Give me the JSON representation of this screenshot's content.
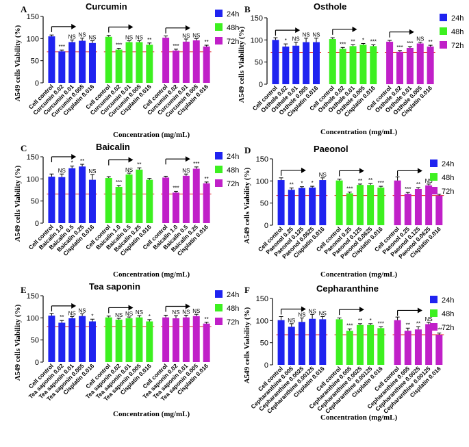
{
  "figure": {
    "xlabel": "Concentration (mg/mL)",
    "ylabel": "A549 cells Viability (%)",
    "legend": [
      "24h",
      "48h",
      "72h"
    ],
    "colors": {
      "24h": "#1f23f0",
      "48h": "#3df020",
      "72h": "#c020c8",
      "refline": "#e41a1c",
      "arrow": "#000000"
    }
  },
  "chart_data": [
    {
      "type": "bar",
      "panel": "A",
      "title": "Curcumin",
      "ylim": [
        0,
        150
      ],
      "yticks": [
        0,
        50,
        100,
        150
      ],
      "threshold": 70,
      "categories": [
        "Cell control",
        "Curcumin 0.02",
        "Curcumin 0.01",
        "Curcumin 0.005",
        "Cisplatin 0.016"
      ],
      "series": [
        {
          "name": "24h",
          "values": [
            105,
            71,
            92,
            95,
            90
          ],
          "errors": [
            3,
            3,
            5,
            6,
            5
          ],
          "labels": [
            "",
            "***",
            "NS",
            "NS",
            "NS"
          ]
        },
        {
          "name": "48h",
          "values": [
            104,
            75,
            92,
            92,
            86
          ],
          "errors": [
            3,
            3,
            3,
            3,
            4
          ],
          "labels": [
            "",
            "***",
            "NS",
            "NS",
            "**"
          ]
        },
        {
          "name": "72h",
          "values": [
            102,
            73,
            93,
            96,
            82
          ],
          "errors": [
            4,
            3,
            6,
            4,
            3
          ],
          "labels": [
            "",
            "***",
            "NS",
            "NS",
            "**"
          ]
        }
      ]
    },
    {
      "type": "bar",
      "panel": "B",
      "title": "Osthole",
      "ylim": [
        0,
        150
      ],
      "yticks": [
        0,
        50,
        100,
        150
      ],
      "threshold": 72,
      "categories": [
        "Cell control",
        "Osthole 0.02",
        "Osthole 0.01",
        "Osthole 0.005",
        "Cisplatin 0.016"
      ],
      "series": [
        {
          "name": "24h",
          "values": [
            100,
            85,
            87,
            95,
            95
          ],
          "errors": [
            5,
            6,
            8,
            9,
            9
          ],
          "labels": [
            "",
            "*",
            "NS",
            "NS",
            "NS"
          ]
        },
        {
          "name": "48h",
          "values": [
            102,
            80,
            86,
            89,
            86
          ],
          "errors": [
            3,
            3,
            3,
            3,
            3
          ],
          "labels": [
            "",
            "***",
            "**",
            "*",
            "***"
          ]
        },
        {
          "name": "72h",
          "values": [
            96,
            73,
            82,
            92,
            85
          ],
          "errors": [
            3,
            3,
            3,
            3,
            3
          ],
          "labels": [
            "",
            "***",
            "***",
            "NS",
            "**"
          ]
        }
      ]
    },
    {
      "type": "bar",
      "panel": "C",
      "title": "Baicalin",
      "ylim": [
        0,
        150
      ],
      "yticks": [
        0,
        50,
        100,
        150
      ],
      "threshold": 66,
      "categories": [
        "Cell control",
        "Baicalin 1.0",
        "Baicalin 0.5",
        "Baicalin 0.25",
        "Cisplatin 0.016"
      ],
      "series": [
        {
          "name": "24h",
          "values": [
            105,
            104,
            124,
            128,
            98
          ],
          "errors": [
            6,
            7,
            5,
            5,
            12
          ],
          "labels": [
            "",
            "NS",
            "*",
            "**",
            "NS"
          ]
        },
        {
          "name": "48h",
          "values": [
            102,
            82,
            110,
            121,
            98
          ],
          "errors": [
            3,
            3,
            3,
            4,
            3
          ],
          "labels": [
            "",
            "***",
            "NS",
            "**",
            ""
          ]
        },
        {
          "name": "72h",
          "values": [
            103,
            69,
            107,
            123,
            90
          ],
          "errors": [
            3,
            3,
            4,
            4,
            3
          ],
          "labels": [
            "",
            "***",
            "NS",
            "***",
            "**"
          ]
        }
      ]
    },
    {
      "type": "bar",
      "panel": "D",
      "title": "Paeonol",
      "ylim": [
        0,
        150
      ],
      "yticks": [
        0,
        50,
        100,
        150
      ],
      "threshold": 67,
      "categories": [
        "Cell control",
        "Paeonol 0.25",
        "Paeonol 0.125",
        "Paeonol 0.0625",
        "Cisplatin 0.016"
      ],
      "series": [
        {
          "name": "24h",
          "values": [
            102,
            80,
            84,
            85,
            102
          ],
          "errors": [
            5,
            4,
            3,
            3,
            5
          ],
          "labels": [
            "",
            "**",
            "*",
            "*",
            "NS"
          ]
        },
        {
          "name": "48h",
          "values": [
            101,
            72,
            91,
            91,
            85
          ],
          "errors": [
            3,
            3,
            2,
            3,
            3
          ],
          "labels": [
            "",
            "***",
            "**",
            "**",
            "***"
          ]
        },
        {
          "name": "72h",
          "values": [
            101,
            71,
            82,
            90,
            67
          ],
          "errors": [
            8,
            3,
            3,
            3,
            3
          ],
          "labels": [
            "",
            "***",
            "**",
            "NS",
            ""
          ]
        }
      ]
    },
    {
      "type": "bar",
      "panel": "E",
      "title": "Tea saponin",
      "ylim": [
        0,
        150
      ],
      "yticks": [
        0,
        50,
        100,
        150
      ],
      "threshold": 80,
      "categories": [
        "Cell control",
        "Tea saponin 0.02",
        "Tea saponin 0.01",
        "Tea saponin 0.005",
        "Cisplatin 0.016"
      ],
      "series": [
        {
          "name": "24h",
          "values": [
            105,
            89,
            99,
            104,
            92
          ],
          "errors": [
            5,
            5,
            4,
            5,
            5
          ],
          "labels": [
            "",
            "**",
            "NS",
            "NS",
            "*"
          ]
        },
        {
          "name": "48h",
          "values": [
            101,
            96,
            99,
            101,
            92
          ],
          "errors": [
            3,
            3,
            3,
            4,
            4
          ],
          "labels": [
            "",
            "NS",
            "NS",
            "NS",
            "*"
          ]
        },
        {
          "name": "72h",
          "values": [
            101,
            99,
            101,
            104,
            87
          ],
          "errors": [
            5,
            6,
            5,
            4,
            3
          ],
          "labels": [
            "",
            "NS",
            "NS",
            "NS",
            "**"
          ]
        }
      ]
    },
    {
      "type": "bar",
      "panel": "F",
      "title": "Cepharanthine",
      "ylim": [
        0,
        150
      ],
      "yticks": [
        0,
        50,
        100,
        150
      ],
      "threshold": 68,
      "categories": [
        "Cell control",
        "Cepharanthine 0.005",
        "Cepharanthine 0.0025",
        "Cepharanthine 0.00125",
        "Cisplatin 0.016"
      ],
      "series": [
        {
          "name": "24h",
          "values": [
            101,
            86,
            97,
            104,
            103
          ],
          "errors": [
            8,
            7,
            9,
            10,
            6
          ],
          "labels": [
            "",
            "NS",
            "NS",
            "NS",
            "NS"
          ]
        },
        {
          "name": "48h",
          "values": [
            103,
            77,
            90,
            90,
            83
          ],
          "errors": [
            3,
            4,
            3,
            3,
            3
          ],
          "labels": [
            "",
            "***",
            "**",
            "*",
            "***"
          ]
        },
        {
          "name": "72h",
          "values": [
            101,
            77,
            80,
            92,
            68
          ],
          "errors": [
            7,
            6,
            6,
            4,
            4
          ],
          "labels": [
            "",
            "**",
            "**",
            "NS",
            "***"
          ]
        }
      ]
    }
  ]
}
